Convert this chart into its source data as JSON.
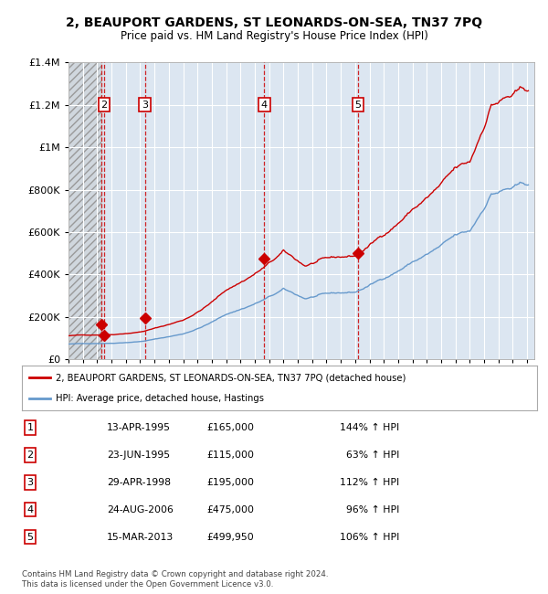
{
  "title": "2, BEAUPORT GARDENS, ST LEONARDS-ON-SEA, TN37 7PQ",
  "subtitle": "Price paid vs. HM Land Registry's House Price Index (HPI)",
  "legend_line1": "2, BEAUPORT GARDENS, ST LEONARDS-ON-SEA, TN37 7PQ (detached house)",
  "legend_line2": "HPI: Average price, detached house, Hastings",
  "footer": "Contains HM Land Registry data © Crown copyright and database right 2024.\nThis data is licensed under the Open Government Licence v3.0.",
  "sales": [
    {
      "num": 1,
      "date_dec": 1995.28,
      "price": 165000,
      "label": "1"
    },
    {
      "num": 2,
      "date_dec": 1995.48,
      "price": 115000,
      "label": "2"
    },
    {
      "num": 3,
      "date_dec": 1998.33,
      "price": 195000,
      "label": "3"
    },
    {
      "num": 4,
      "date_dec": 2006.65,
      "price": 475000,
      "label": "4"
    },
    {
      "num": 5,
      "date_dec": 2013.2,
      "price": 499950,
      "label": "5"
    }
  ],
  "table_rows": [
    {
      "num": "1",
      "date": "13-APR-1995",
      "price": "£165,000",
      "pct": "144% ↑ HPI"
    },
    {
      "num": "2",
      "date": "23-JUN-1995",
      "price": "£115,000",
      "pct": "  63% ↑ HPI"
    },
    {
      "num": "3",
      "date": "29-APR-1998",
      "price": "£195,000",
      "pct": "112% ↑ HPI"
    },
    {
      "num": "4",
      "date": "24-AUG-2006",
      "price": "£475,000",
      "pct": "  96% ↑ HPI"
    },
    {
      "num": "5",
      "date": "15-MAR-2013",
      "price": "£499,950",
      "pct": "106% ↑ HPI"
    }
  ],
  "ylim": [
    0,
    1400000
  ],
  "xlim_start": 1993.0,
  "xlim_end": 2025.5,
  "hpi_color": "#6699cc",
  "price_color": "#cc0000",
  "sale_marker_color": "#cc0000",
  "dashed_line_color": "#cc0000",
  "plot_bg_color": "#dce6f1",
  "grid_color": "#ffffff",
  "sale_label_box_color": "#cc0000",
  "hatch_end": 1995.28
}
